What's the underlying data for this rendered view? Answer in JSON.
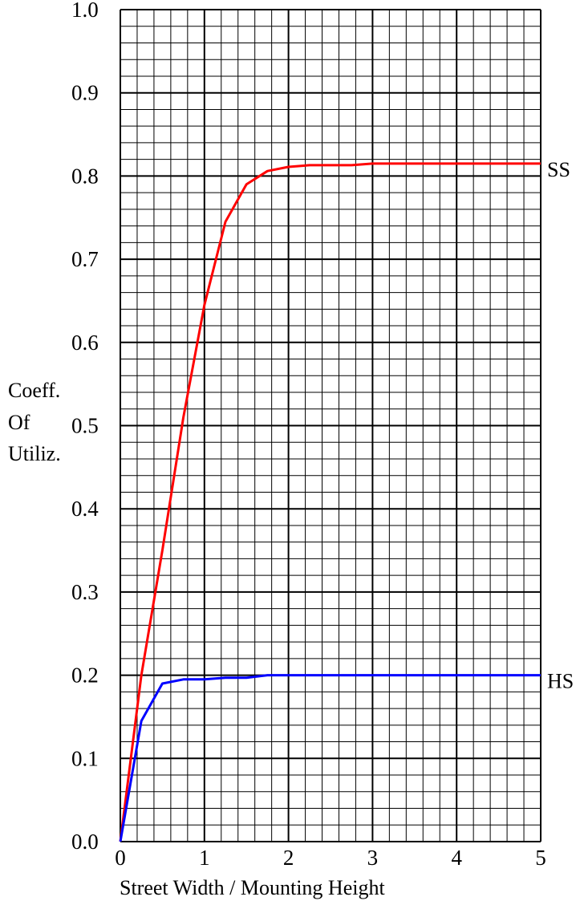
{
  "chart_data": {
    "type": "line",
    "xlabel": "Street Width / Mounting Height",
    "ylabel_lines": [
      "Coeff.",
      "Of",
      "Utiliz."
    ],
    "xlim": [
      0,
      5
    ],
    "ylim": [
      0,
      1.0
    ],
    "x_ticks": [
      "0",
      "1",
      "2",
      "3",
      "4",
      "5"
    ],
    "y_ticks": [
      "0.0",
      "0.1",
      "0.2",
      "0.3",
      "0.4",
      "0.5",
      "0.6",
      "0.7",
      "0.8",
      "0.9",
      "1.0"
    ],
    "grid": true,
    "minor_grid_divisions": {
      "x": 5,
      "y": 5
    },
    "series": [
      {
        "name": "SS",
        "color": "#ff0000",
        "points": [
          [
            0,
            0
          ],
          [
            0.25,
            0.2
          ],
          [
            0.5,
            0.35
          ],
          [
            0.75,
            0.51
          ],
          [
            1.0,
            0.645
          ],
          [
            1.25,
            0.745
          ],
          [
            1.5,
            0.79
          ],
          [
            1.75,
            0.806
          ],
          [
            2.0,
            0.811
          ],
          [
            2.25,
            0.813
          ],
          [
            2.5,
            0.813
          ],
          [
            2.75,
            0.813
          ],
          [
            3.0,
            0.815
          ],
          [
            3.5,
            0.815
          ],
          [
            4.0,
            0.815
          ],
          [
            4.5,
            0.815
          ],
          [
            5.0,
            0.815
          ]
        ]
      },
      {
        "name": "HS",
        "color": "#0000ff",
        "points": [
          [
            0,
            0
          ],
          [
            0.25,
            0.145
          ],
          [
            0.5,
            0.19
          ],
          [
            0.75,
            0.195
          ],
          [
            1.0,
            0.195
          ],
          [
            1.25,
            0.197
          ],
          [
            1.5,
            0.197
          ],
          [
            1.75,
            0.2
          ],
          [
            2.0,
            0.2
          ],
          [
            2.5,
            0.2
          ],
          [
            3.0,
            0.2
          ],
          [
            3.5,
            0.2
          ],
          [
            4.0,
            0.2
          ],
          [
            4.5,
            0.2
          ],
          [
            5.0,
            0.2
          ]
        ]
      }
    ]
  }
}
